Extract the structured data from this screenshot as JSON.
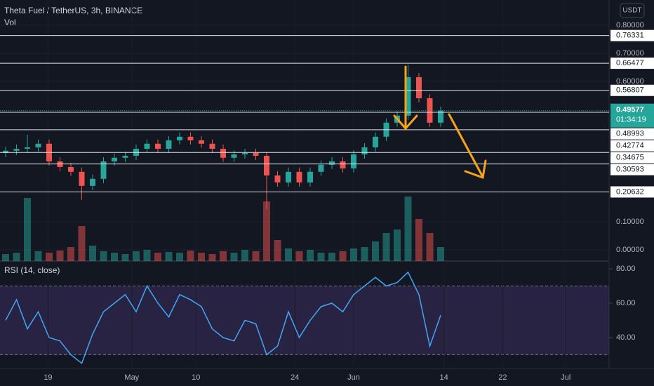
{
  "chart_data": [
    {
      "type": "candlestick",
      "title": "Theta Fuel / TetherUS, 3h, BINANCE",
      "currency": "USDT",
      "x": [
        0,
        1,
        2,
        3,
        4,
        5,
        6,
        7,
        8,
        9,
        10,
        11,
        12,
        13,
        14,
        15,
        16,
        17,
        18,
        19,
        20,
        21,
        22,
        23,
        24,
        25,
        26,
        27,
        28,
        29,
        30,
        31,
        32,
        33,
        34,
        35,
        36,
        37,
        38,
        39,
        40
      ],
      "open": [
        0.345,
        0.353,
        0.36,
        0.365,
        0.378,
        0.315,
        0.295,
        0.278,
        0.228,
        0.253,
        0.315,
        0.328,
        0.335,
        0.36,
        0.378,
        0.36,
        0.39,
        0.403,
        0.39,
        0.378,
        0.36,
        0.328,
        0.34,
        0.345,
        0.335,
        0.265,
        0.24,
        0.278,
        0.24,
        0.278,
        0.303,
        0.315,
        0.29,
        0.34,
        0.365,
        0.403,
        0.453,
        0.478,
        0.615,
        0.54,
        0.453
      ],
      "high": [
        0.368,
        0.375,
        0.41,
        0.393,
        0.393,
        0.33,
        0.31,
        0.293,
        0.268,
        0.33,
        0.343,
        0.35,
        0.375,
        0.393,
        0.393,
        0.405,
        0.418,
        0.418,
        0.405,
        0.393,
        0.375,
        0.355,
        0.36,
        0.36,
        0.35,
        0.28,
        0.293,
        0.293,
        0.293,
        0.318,
        0.33,
        0.33,
        0.355,
        0.38,
        0.418,
        0.468,
        0.493,
        0.66,
        0.63,
        0.555,
        0.511
      ],
      "low": [
        0.33,
        0.338,
        0.345,
        0.35,
        0.3,
        0.28,
        0.263,
        0.178,
        0.213,
        0.238,
        0.3,
        0.313,
        0.32,
        0.345,
        0.345,
        0.345,
        0.375,
        0.375,
        0.363,
        0.345,
        0.313,
        0.313,
        0.325,
        0.32,
        0.145,
        0.225,
        0.225,
        0.225,
        0.225,
        0.263,
        0.288,
        0.275,
        0.275,
        0.325,
        0.35,
        0.388,
        0.438,
        0.463,
        0.525,
        0.438,
        0.438
      ],
      "close": [
        0.353,
        0.36,
        0.365,
        0.378,
        0.315,
        0.295,
        0.278,
        0.228,
        0.253,
        0.315,
        0.328,
        0.335,
        0.36,
        0.378,
        0.36,
        0.39,
        0.403,
        0.39,
        0.378,
        0.36,
        0.328,
        0.34,
        0.345,
        0.335,
        0.265,
        0.24,
        0.278,
        0.24,
        0.278,
        0.303,
        0.315,
        0.29,
        0.34,
        0.365,
        0.403,
        0.453,
        0.478,
        0.615,
        0.54,
        0.453,
        0.496
      ],
      "up_color": "#26a69a",
      "down_color": "#ef5350",
      "xlim": [
        0,
        56
      ],
      "xticks": [
        {
          "value": 3.9,
          "label": "19"
        },
        {
          "value": 11.6,
          "label": "May"
        },
        {
          "value": 17.5,
          "label": "10"
        },
        {
          "value": 26.6,
          "label": "24"
        },
        {
          "value": 32,
          "label": "Jun"
        },
        {
          "value": 40.3,
          "label": "14"
        },
        {
          "value": 45.7,
          "label": "22"
        },
        {
          "value": 51.5,
          "label": "Jul"
        }
      ],
      "ylim": [
        -0.04,
        0.89
      ],
      "yticks": [
        {
          "value": 0.8,
          "label": "0.80000"
        },
        {
          "value": 0.7,
          "label": "0.70000"
        },
        {
          "value": 0.6,
          "label": "0.60000"
        },
        {
          "value": 0.1,
          "label": "0.10000"
        },
        {
          "value": 0,
          "label": "0.00000"
        }
      ],
      "levels": [
        0.76331,
        0.66477,
        0.56807,
        0.48993,
        0.42774,
        0.34675,
        0.30593,
        0.20632
      ],
      "last_price": 0.49577,
      "countdown": "01:34:19"
    },
    {
      "type": "bar",
      "title": "Vol",
      "color": "#26a69a",
      "x": [
        0,
        1,
        2,
        3,
        4,
        5,
        6,
        7,
        8,
        9,
        10,
        11,
        12,
        13,
        14,
        15,
        16,
        17,
        18,
        19,
        20,
        21,
        22,
        23,
        24,
        25,
        26,
        27,
        28,
        29,
        30,
        31,
        32,
        33,
        34,
        35,
        36,
        37,
        38,
        39,
        40
      ],
      "values": [
        10,
        12,
        90,
        14,
        12,
        15,
        20,
        50,
        22,
        14,
        12,
        10,
        14,
        16,
        12,
        13,
        12,
        15,
        12,
        10,
        14,
        12,
        16,
        14,
        85,
        30,
        18,
        14,
        16,
        12,
        12,
        14,
        18,
        20,
        28,
        40,
        45,
        92,
        60,
        40,
        20
      ],
      "ylim": [
        0,
        100
      ]
    },
    {
      "type": "line",
      "title": "RSI (14, close)",
      "color": "#42a5f5",
      "x": [
        0,
        1,
        2,
        3,
        4,
        5,
        6,
        7,
        8,
        9,
        10,
        11,
        12,
        13,
        14,
        15,
        16,
        17,
        18,
        19,
        20,
        21,
        22,
        23,
        24,
        25,
        26,
        27,
        28,
        29,
        30,
        31,
        32,
        33,
        34,
        35,
        36,
        37,
        38,
        39,
        40
      ],
      "values": [
        50,
        62,
        45,
        55,
        40,
        38,
        30,
        25,
        42,
        55,
        60,
        65,
        55,
        70,
        60,
        52,
        65,
        62,
        58,
        45,
        40,
        38,
        50,
        48,
        30,
        35,
        55,
        40,
        50,
        58,
        60,
        55,
        65,
        70,
        75,
        70,
        72,
        78,
        65,
        35,
        53
      ],
      "ylim": [
        22,
        84.5
      ],
      "yticks": [
        {
          "value": 80,
          "label": "80.00"
        },
        {
          "value": 60,
          "label": "60.00"
        },
        {
          "value": 40,
          "label": "40.00"
        }
      ],
      "bands": [
        30,
        70
      ]
    }
  ]
}
